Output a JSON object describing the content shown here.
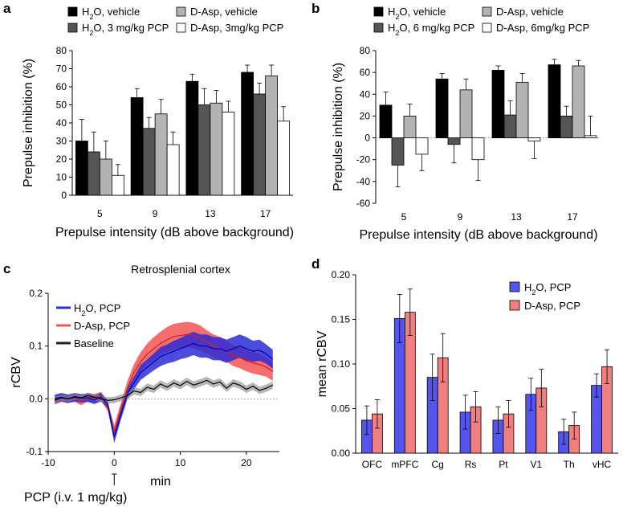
{
  "chart_data": [
    {
      "panel": "a",
      "type": "bar",
      "xlabel": "Prepulse intensity (dB above background)",
      "ylabel": "Prepulse inhibition (%)",
      "ylim": [
        0,
        80
      ],
      "yticks": [
        "0",
        "10",
        "20",
        "30",
        "40",
        "50",
        "60",
        "70",
        "80"
      ],
      "categories": [
        "5",
        "9",
        "13",
        "17"
      ],
      "series": [
        {
          "name_main": "H",
          "name_sub": "2",
          "name_rest": "O, vehicle",
          "color": "#000000",
          "values": [
            30,
            54,
            63,
            68
          ],
          "errors": [
            12,
            5,
            4,
            4
          ]
        },
        {
          "name_main": "H",
          "name_sub": "2",
          "name_rest": "O, 3 mg/kg PCP",
          "color": "#555555",
          "values": [
            24,
            37,
            50,
            56
          ],
          "errors": [
            11,
            6,
            9,
            6
          ]
        },
        {
          "name_main": "D-Asp, vehicle",
          "name_sub": "",
          "name_rest": "",
          "color": "#b3b3b3",
          "values": [
            20,
            45,
            51,
            66
          ],
          "errors": [
            10,
            8,
            7,
            6
          ]
        },
        {
          "name_main": "D-Asp, 3mg/kg PCP",
          "name_sub": "",
          "name_rest": "",
          "color": "#ffffff",
          "values": [
            11,
            28,
            46,
            41
          ],
          "errors": [
            6,
            7,
            6,
            8
          ]
        }
      ]
    },
    {
      "panel": "b",
      "type": "bar",
      "xlabel": "Prepulse intensity (dB above background)",
      "ylabel": "Prepulse inhibition (%)",
      "ylim": [
        -60,
        80
      ],
      "yticks": [
        "-60",
        "-40",
        "-20",
        "0",
        "20",
        "40",
        "60",
        "80"
      ],
      "categories": [
        "5",
        "9",
        "13",
        "17"
      ],
      "series": [
        {
          "name_main": "H",
          "name_sub": "2",
          "name_rest": "O, vehicle",
          "color": "#000000",
          "values": [
            30,
            54,
            62,
            67
          ],
          "errors": [
            12,
            5,
            4,
            5
          ]
        },
        {
          "name_main": "H",
          "name_sub": "2",
          "name_rest": "O, 6 mg/kg PCP",
          "color": "#555555",
          "values": [
            -25,
            -6,
            21,
            20
          ],
          "errors": [
            20,
            17,
            13,
            9
          ]
        },
        {
          "name_main": "D-Asp, vehicle",
          "name_sub": "",
          "name_rest": "",
          "color": "#b3b3b3",
          "values": [
            20,
            44,
            51,
            66
          ],
          "errors": [
            11,
            10,
            8,
            5
          ]
        },
        {
          "name_main": "D-Asp, 6mg/kg PCP",
          "name_sub": "",
          "name_rest": "",
          "color": "#ffffff",
          "values": [
            -15,
            -20,
            -3,
            2
          ],
          "errors": [
            15,
            19,
            16,
            18
          ]
        }
      ]
    },
    {
      "panel": "c",
      "type": "line",
      "title": "Retrosplenial cortex",
      "xlabel": "min",
      "ylabel": "rCBV",
      "xlim": [
        -10,
        25
      ],
      "ylim": [
        -0.1,
        0.2
      ],
      "xticks": [
        "-10",
        "0",
        "10",
        "20"
      ],
      "yticks": [
        "-0.1",
        "0.0",
        "0.1",
        "0.2"
      ],
      "annotation": "PCP (i.v. 1 mg/kg)",
      "x": [
        -9,
        -8,
        -7,
        -6,
        -5,
        -4,
        -3,
        -2,
        -1,
        0,
        1,
        2,
        3,
        4,
        5,
        6,
        7,
        8,
        9,
        10,
        11,
        12,
        13,
        14,
        15,
        16,
        17,
        18,
        19,
        20,
        21,
        22,
        23,
        24
      ],
      "series": [
        {
          "name_main": "H",
          "name_sub": "2",
          "name_rest": "O, PCP",
          "color": "#2b2bd6",
          "values": [
            0.0,
            0.003,
            0.0,
            0.003,
            0.001,
            0.002,
            -0.002,
            0.003,
            -0.01,
            -0.072,
            -0.03,
            0.01,
            0.03,
            0.05,
            0.06,
            0.07,
            0.08,
            0.085,
            0.09,
            0.095,
            0.1,
            0.105,
            0.1,
            0.1,
            0.095,
            0.095,
            0.09,
            0.095,
            0.1,
            0.095,
            0.09,
            0.092,
            0.085,
            0.075
          ],
          "errors": [
            0.008,
            0.008,
            0.008,
            0.008,
            0.008,
            0.008,
            0.008,
            0.008,
            0.008,
            0.012,
            0.01,
            0.01,
            0.012,
            0.014,
            0.015,
            0.016,
            0.018,
            0.018,
            0.02,
            0.02,
            0.022,
            0.022,
            0.022,
            0.022,
            0.022,
            0.022,
            0.022,
            0.022,
            0.022,
            0.022,
            0.02,
            0.02,
            0.018,
            0.018
          ]
        },
        {
          "name_main": "D-Asp, PCP",
          "name_sub": "",
          "name_rest": "",
          "color": "#f25555",
          "values": [
            -0.003,
            0.002,
            0.0,
            0.002,
            -0.004,
            0.003,
            0.001,
            0.005,
            -0.015,
            -0.062,
            -0.02,
            0.02,
            0.05,
            0.07,
            0.085,
            0.095,
            0.105,
            0.112,
            0.118,
            0.12,
            0.122,
            0.12,
            0.115,
            0.108,
            0.1,
            0.095,
            0.09,
            0.082,
            0.078,
            0.072,
            0.068,
            0.065,
            0.06,
            0.052
          ],
          "errors": [
            0.008,
            0.008,
            0.008,
            0.008,
            0.008,
            0.008,
            0.008,
            0.008,
            0.008,
            0.012,
            0.012,
            0.014,
            0.016,
            0.018,
            0.02,
            0.022,
            0.022,
            0.024,
            0.024,
            0.024,
            0.024,
            0.024,
            0.024,
            0.022,
            0.022,
            0.022,
            0.02,
            0.02,
            0.02,
            0.02,
            0.02,
            0.02,
            0.018,
            0.018
          ]
        },
        {
          "name_main": "Baseline",
          "name_sub": "",
          "name_rest": "",
          "color": "#222222",
          "values": [
            -0.002,
            0.002,
            0.0,
            0.004,
            0.002,
            0.006,
            0.003,
            0.0,
            -0.003,
            -0.002,
            0.002,
            0.006,
            0.015,
            0.012,
            0.022,
            0.018,
            0.028,
            0.022,
            0.03,
            0.025,
            0.033,
            0.026,
            0.03,
            0.035,
            0.028,
            0.032,
            0.02,
            0.03,
            0.026,
            0.018,
            0.024,
            0.016,
            0.02,
            0.026
          ],
          "errors": [
            0.006,
            0.006,
            0.006,
            0.006,
            0.006,
            0.006,
            0.006,
            0.006,
            0.006,
            0.006,
            0.006,
            0.006,
            0.007,
            0.007,
            0.007,
            0.007,
            0.007,
            0.007,
            0.007,
            0.007,
            0.007,
            0.007,
            0.007,
            0.007,
            0.007,
            0.007,
            0.007,
            0.007,
            0.007,
            0.007,
            0.007,
            0.007,
            0.007,
            0.007
          ]
        }
      ]
    },
    {
      "panel": "d",
      "type": "bar",
      "ylabel": "mean rCBV",
      "ylim": [
        0,
        0.2
      ],
      "yticks": [
        "0.00",
        "0.05",
        "0.10",
        "0.15",
        "0.20"
      ],
      "categories": [
        "OFC",
        "mPFC",
        "Cg",
        "Rs",
        "Pt",
        "V1",
        "Th",
        "vHC"
      ],
      "series": [
        {
          "name_main": "H",
          "name_sub": "2",
          "name_rest": "O, PCP",
          "color": "#5555ee",
          "values": [
            0.037,
            0.151,
            0.085,
            0.046,
            0.037,
            0.066,
            0.024,
            0.076
          ],
          "errors": [
            0.016,
            0.027,
            0.026,
            0.019,
            0.015,
            0.018,
            0.014,
            0.013
          ]
        },
        {
          "name_main": "D-Asp, PCP",
          "name_sub": "",
          "name_rest": "",
          "color": "#f08080",
          "values": [
            0.044,
            0.158,
            0.107,
            0.052,
            0.044,
            0.073,
            0.031,
            0.097
          ],
          "errors": [
            0.016,
            0.026,
            0.027,
            0.017,
            0.015,
            0.021,
            0.015,
            0.019
          ]
        }
      ]
    }
  ]
}
